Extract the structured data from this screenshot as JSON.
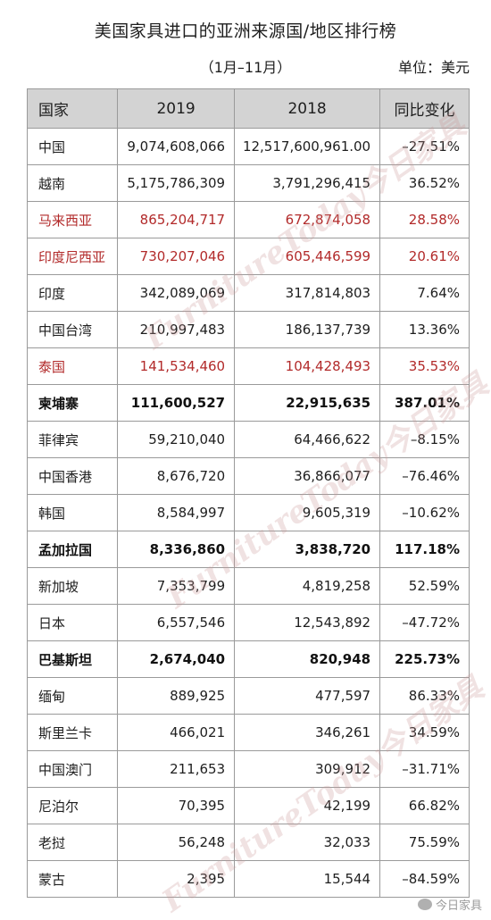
{
  "title": "美国家具进口的亚洲来源国/地区排行榜",
  "subtitle": "（1月–11月）",
  "unit": "单位：美元",
  "columns": {
    "country": "国家",
    "y2019": "2019",
    "y2018": "2018",
    "yoy": "同比变化"
  },
  "rows": [
    {
      "country": "中国",
      "v2019": "9,074,608,066",
      "v2018": "12,517,600,961.00",
      "yoy": "–27.51%",
      "style": "normal"
    },
    {
      "country": "越南",
      "v2019": "5,175,786,309",
      "v2018": "3,791,296,415",
      "yoy": "36.52%",
      "style": "normal"
    },
    {
      "country": "马来西亚",
      "v2019": "865,204,717",
      "v2018": "672,874,058",
      "yoy": "28.58%",
      "style": "red"
    },
    {
      "country": "印度尼西亚",
      "v2019": "730,207,046",
      "v2018": "605,446,599",
      "yoy": "20.61%",
      "style": "red"
    },
    {
      "country": "印度",
      "v2019": "342,089,069",
      "v2018": "317,814,803",
      "yoy": "7.64%",
      "style": "normal"
    },
    {
      "country": "中国台湾",
      "v2019": "210,997,483",
      "v2018": "186,137,739",
      "yoy": "13.36%",
      "style": "normal"
    },
    {
      "country": "泰国",
      "v2019": "141,534,460",
      "v2018": "104,428,493",
      "yoy": "35.53%",
      "style": "red"
    },
    {
      "country": "柬埔寨",
      "v2019": "111,600,527",
      "v2018": "22,915,635",
      "yoy": "387.01%",
      "style": "bold"
    },
    {
      "country": "菲律宾",
      "v2019": "59,210,040",
      "v2018": "64,466,622",
      "yoy": "–8.15%",
      "style": "normal"
    },
    {
      "country": "中国香港",
      "v2019": "8,676,720",
      "v2018": "36,866,077",
      "yoy": "–76.46%",
      "style": "normal"
    },
    {
      "country": "韩国",
      "v2019": "8,584,997",
      "v2018": "9,605,319",
      "yoy": "–10.62%",
      "style": "normal"
    },
    {
      "country": "孟加拉国",
      "v2019": "8,336,860",
      "v2018": "3,838,720",
      "yoy": "117.18%",
      "style": "bold"
    },
    {
      "country": "新加坡",
      "v2019": "7,353,799",
      "v2018": "4,819,258",
      "yoy": "52.59%",
      "style": "normal"
    },
    {
      "country": "日本",
      "v2019": "6,557,546",
      "v2018": "12,543,892",
      "yoy": "–47.72%",
      "style": "normal"
    },
    {
      "country": "巴基斯坦",
      "v2019": "2,674,040",
      "v2018": "820,948",
      "yoy": "225.73%",
      "style": "bold"
    },
    {
      "country": "缅甸",
      "v2019": "889,925",
      "v2018": "477,597",
      "yoy": "86.33%",
      "style": "normal"
    },
    {
      "country": "斯里兰卡",
      "v2019": "466,021",
      "v2018": "346,261",
      "yoy": "34.59%",
      "style": "normal"
    },
    {
      "country": "中国澳门",
      "v2019": "211,653",
      "v2018": "309,912",
      "yoy": "–31.71%",
      "style": "normal"
    },
    {
      "country": "尼泊尔",
      "v2019": "70,395",
      "v2018": "42,199",
      "yoy": "66.82%",
      "style": "normal"
    },
    {
      "country": "老挝",
      "v2019": "56,248",
      "v2018": "32,033",
      "yoy": "75.59%",
      "style": "normal"
    },
    {
      "country": "蒙古",
      "v2019": "2,395",
      "v2018": "15,544",
      "yoy": "–84.59%",
      "style": "normal"
    }
  ],
  "watermark": "FurnitureToday今日家具",
  "footer_logo": "今日家具",
  "colors": {
    "header_bg": "#d3d3d3",
    "highlight_red": "#b22a2a",
    "border": "#9a9a9a"
  }
}
